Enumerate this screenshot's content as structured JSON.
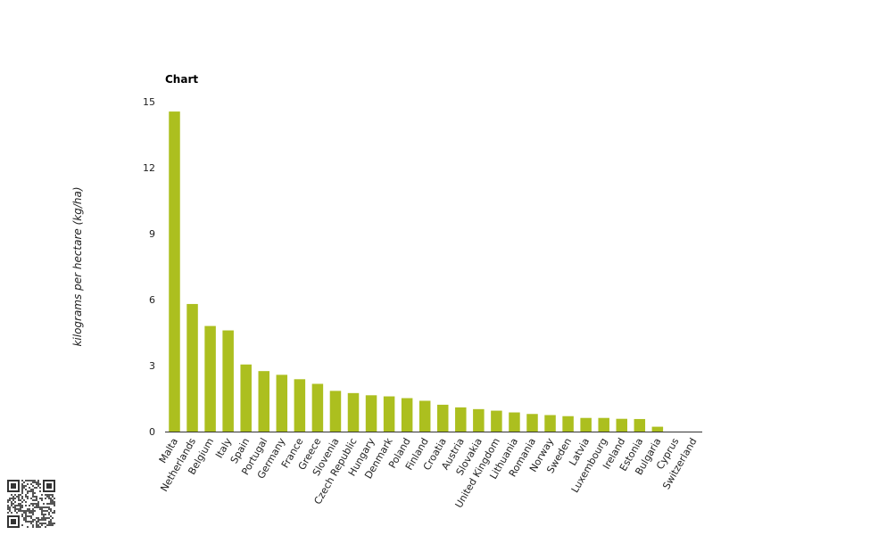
{
  "chart_data": {
    "type": "bar",
    "title": "Chart",
    "xlabel": "",
    "ylabel": "kilograms per hectare (kg/ha)",
    "ylim": [
      0,
      15
    ],
    "yticks": [
      0,
      3,
      6,
      9,
      12,
      15
    ],
    "grid": false,
    "legend": "none",
    "bar_color": "#acbf1f",
    "categories": [
      "Malta",
      "Netherlands",
      "Belgium",
      "Italy",
      "Spain",
      "Portugal",
      "Germany",
      "France",
      "Greece",
      "Slovenia",
      "Czech Republic",
      "Hungary",
      "Denmark",
      "Poland",
      "Finland",
      "Croatia",
      "Austria",
      "Slovakia",
      "United Kingdom",
      "Lithuania",
      "Romania",
      "Norway",
      "Sweden",
      "Latvia",
      "Luxembourg",
      "Ireland",
      "Estonia",
      "Bulgaria",
      "Cyprus",
      "Switzerland"
    ],
    "values": [
      14.55,
      5.8,
      4.8,
      4.6,
      3.05,
      2.75,
      2.58,
      2.38,
      2.17,
      1.85,
      1.75,
      1.65,
      1.6,
      1.52,
      1.4,
      1.22,
      1.1,
      1.02,
      0.95,
      0.87,
      0.8,
      0.75,
      0.7,
      0.62,
      0.62,
      0.58,
      0.57,
      0.22,
      0,
      0
    ]
  }
}
